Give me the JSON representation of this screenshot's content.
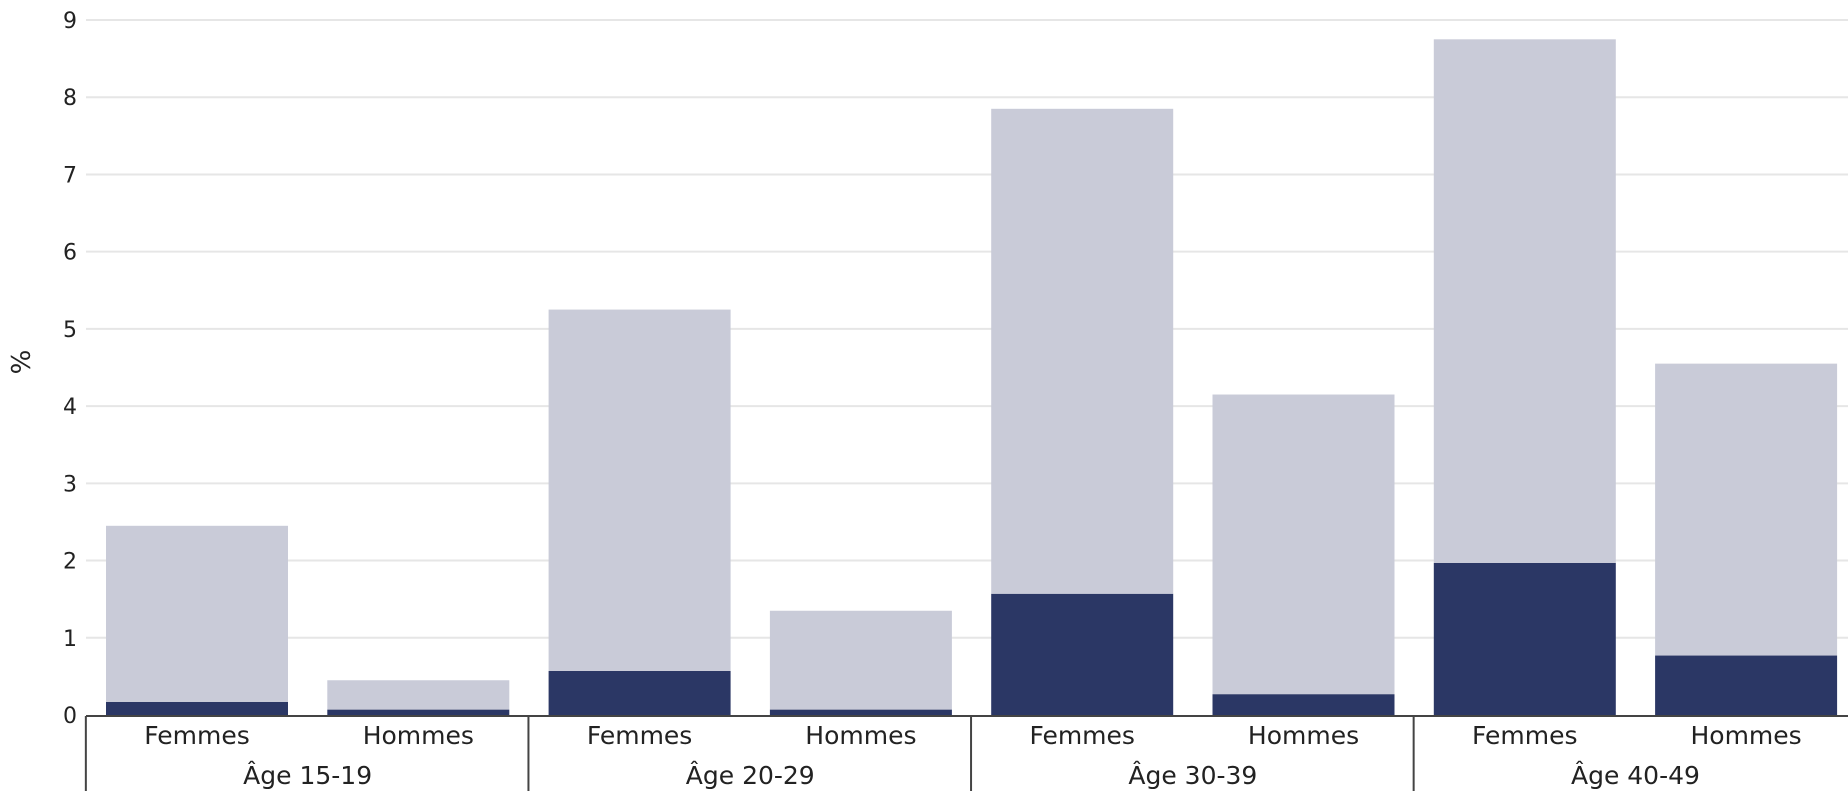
{
  "chart_data": {
    "type": "bar",
    "stacked": true,
    "title": "",
    "xlabel": "",
    "ylabel": "%",
    "ylim": [
      0,
      9
    ],
    "yticks": [
      0,
      1,
      2,
      3,
      4,
      5,
      6,
      7,
      8,
      9
    ],
    "grid": true,
    "groups": [
      "Âge 15-19",
      "Âge 20-29",
      "Âge 30-39",
      "Âge 40-49"
    ],
    "subcategories": [
      "Femmes",
      "Hommes"
    ],
    "categories": [
      "Âge 15-19 Femmes",
      "Âge 15-19 Hommes",
      "Âge 20-29 Femmes",
      "Âge 20-29 Hommes",
      "Âge 30-39 Femmes",
      "Âge 30-39 Hommes",
      "Âge 40-49 Femmes",
      "Âge 40-49 Hommes"
    ],
    "series": [
      {
        "color": "#2b3765",
        "values": [
          0.17,
          0.07,
          0.57,
          0.07,
          1.57,
          0.27,
          1.97,
          0.77
        ]
      },
      {
        "color": "#c9cbd8",
        "values": [
          2.28,
          0.38,
          4.68,
          1.28,
          6.28,
          3.88,
          6.78,
          3.78
        ]
      }
    ]
  }
}
